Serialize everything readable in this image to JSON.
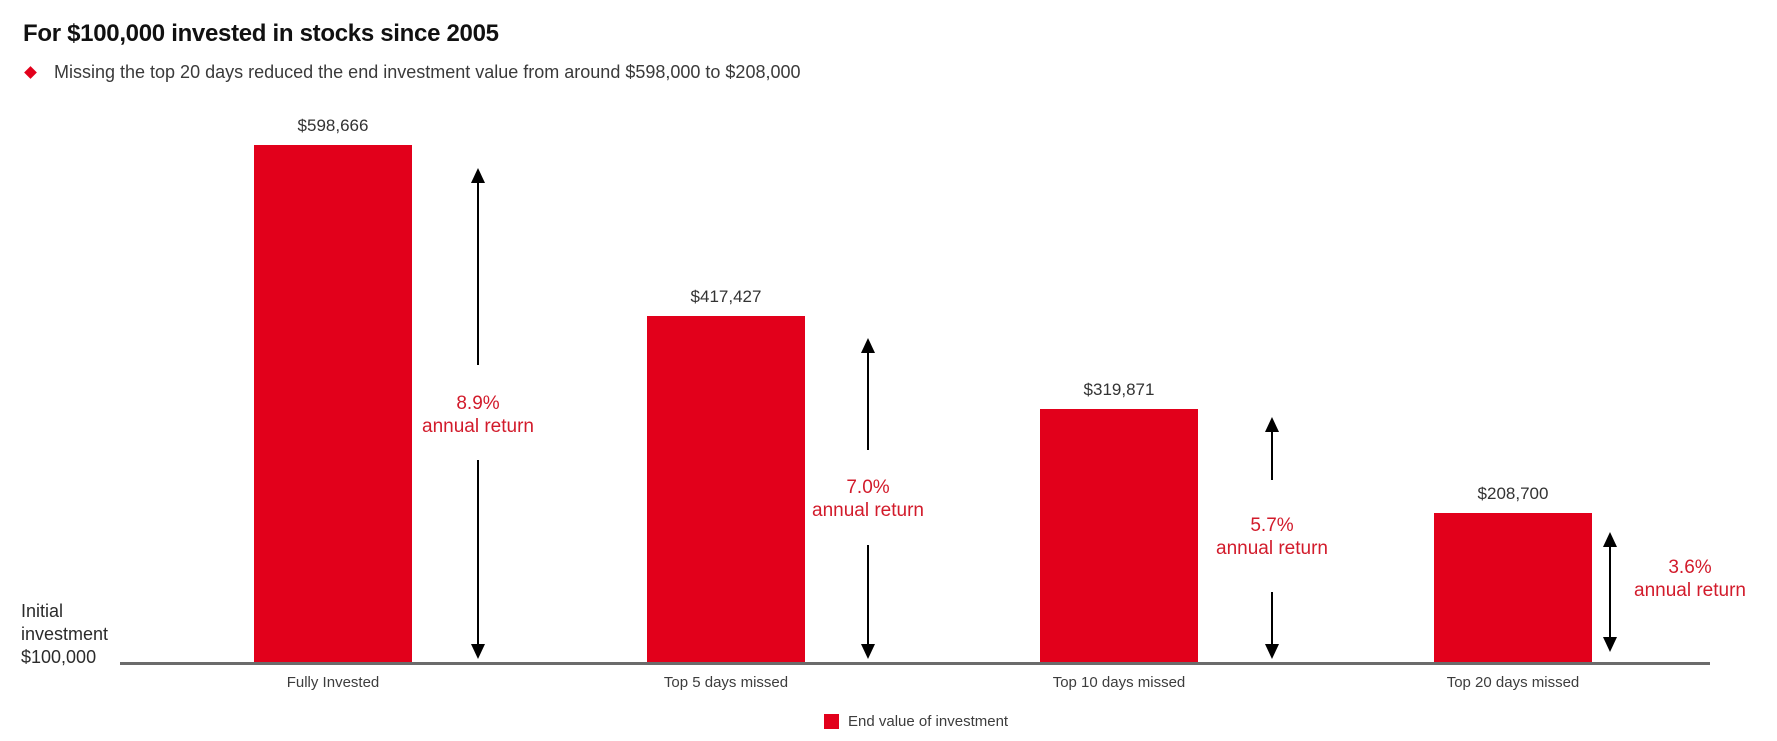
{
  "header": {
    "title": "For $100,000 invested in stocks since 2005",
    "bullet_icon": "diamond-icon",
    "bullet_text": "Missing the top 20 days reduced the end investment value from around $598,000 to $208,000"
  },
  "colors": {
    "bar_red": "#e2001b",
    "annotation_red": "#d21b2b",
    "axis_gray": "#6b6b6b",
    "text_dark": "#111111",
    "text_gray": "#3d3d3d",
    "arrow_black": "#000000"
  },
  "y_axis_label": {
    "line1": "Initial",
    "line2": "investment",
    "line3": "$100,000"
  },
  "legend": {
    "label": "End value of investment"
  },
  "chart_data": {
    "type": "bar",
    "title": "For $100,000 invested in stocks since 2005",
    "subtitle": "Missing the top 20 days reduced the end investment value from around $598,000 to $208,000",
    "unit": "USD",
    "baseline_label": "Initial investment $100,000",
    "initial_investment": 100000,
    "grid": false,
    "legend_entries": [
      "End value of investment"
    ],
    "legend_position": "bottom-center",
    "bar_color": "#e2001b",
    "categories": [
      "Fully Invested",
      "Top 5 days missed",
      "Top 10 days missed",
      "Top 20 days missed"
    ],
    "values": [
      598666,
      417427,
      319871,
      208700
    ],
    "annual_returns_pct": [
      8.9,
      7.0,
      5.7,
      3.6
    ],
    "bars": [
      {
        "category": "Fully Invested",
        "value": 598666,
        "value_label": "$598,666",
        "annual_return_pct": "8.9%",
        "annual_return_caption": "annual return"
      },
      {
        "category": "Top 5 days missed",
        "value": 417427,
        "value_label": "$417,427",
        "annual_return_pct": "7.0%",
        "annual_return_caption": "annual return"
      },
      {
        "category": "Top 10 days missed",
        "value": 319871,
        "value_label": "$319,871",
        "annual_return_pct": "5.7%",
        "annual_return_caption": "annual return"
      },
      {
        "category": "Top 20 days missed",
        "value": 208700,
        "value_label": "$208,700",
        "annual_return_pct": "3.6%",
        "annual_return_caption": "annual return"
      }
    ]
  }
}
